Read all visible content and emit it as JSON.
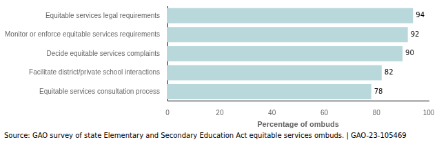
{
  "chart_data": {
    "type": "bar",
    "orientation": "horizontal",
    "categories": [
      "Equitable services consultation process",
      "Facilitate district/private school interactions",
      "Decide equitable services complaints",
      "Monitor or enforce equitable services requirements",
      "Equitable services legal requirements"
    ],
    "values": [
      78,
      82,
      90,
      92,
      94
    ],
    "color": "#b8d8dc",
    "xlabel": "Percentage of ombuds",
    "xlim": [
      0,
      100
    ],
    "xticks": [
      0,
      20,
      40,
      60,
      80,
      100
    ],
    "data_labels": true,
    "grid": false,
    "annotations": [
      "Source: GAO survey of state Elementary and Secondary Education Act equitable services ombuds.  |  GAO-23-105469"
    ]
  }
}
